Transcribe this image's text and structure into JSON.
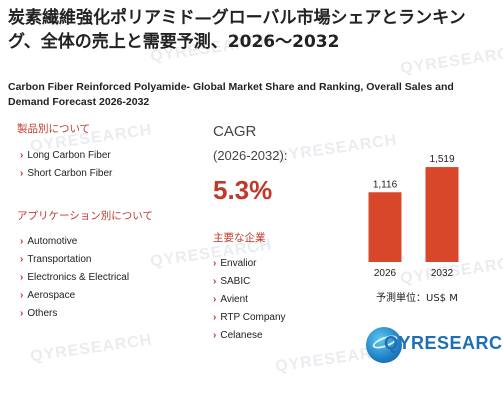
{
  "title_jp": "炭素繊維強化ポリアミド—グローバル市場シェアとランキング、全体の売上と需要予測、2026〜2032",
  "title_en": "Carbon Fiber Reinforced Polyamide- Global Market Share and Ranking, Overall Sales and Demand Forecast 2026-2032",
  "product_section": {
    "heading": "製品別について",
    "items": [
      "Long Carbon Fiber",
      "Short Carbon Fiber"
    ]
  },
  "application_section": {
    "heading": "アプリケーション別について",
    "items": [
      "Automotive",
      "Transportation",
      "Electronics & Electrical",
      "Aerospace",
      "Others"
    ]
  },
  "cagr": {
    "label": "CAGR",
    "range": "(2026-2032):",
    "value": "5.3%"
  },
  "companies_section": {
    "heading": "主要な企業",
    "items": [
      "Envalior",
      "SABIC",
      "Avient",
      "RTP Company",
      "Celanese"
    ]
  },
  "unit_label": "予測単位：US$ M",
  "colors": {
    "accent": "#c0392b",
    "bar": "#d9472b",
    "brand": "#1f6fb4"
  },
  "watermark": "QYRESEARCH",
  "logo": {
    "text": "QYRESEARCH"
  },
  "chart_data": {
    "type": "bar",
    "categories": [
      "2026",
      "2032"
    ],
    "values": [
      1116,
      1519
    ],
    "value_labels": [
      "1,116",
      "1,519"
    ],
    "ylim": [
      0,
      1600
    ],
    "grid": false
  }
}
